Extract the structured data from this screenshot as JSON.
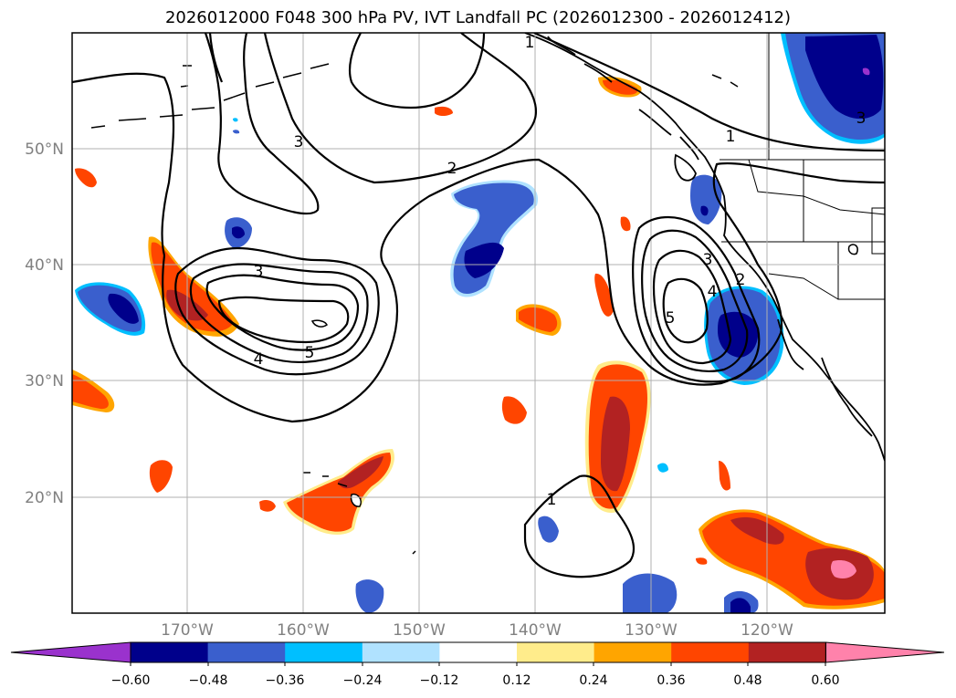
{
  "title": "2026012000 F048 300 hPa PV, IVT Landfall PC (2026012300 - 2026012412)",
  "latitude_labels": [
    "50°N",
    "40°N",
    "30°N",
    "20°N"
  ],
  "longitude_labels": [
    "170°W",
    "160°W",
    "150°W",
    "140°W",
    "130°W",
    "120°W"
  ],
  "colorbar": {
    "tick_labels": [
      "−0.60",
      "−0.48",
      "−0.36",
      "−0.24",
      "−0.12",
      "0.12",
      "0.24",
      "0.36",
      "0.48",
      "0.60"
    ],
    "colors": [
      "#9a32cd",
      "#00008b",
      "#3a5fcd",
      "#00bfff",
      "#b0e2ff",
      "#ffffff",
      "#ffec8b",
      "#ffa500",
      "#ff4500",
      "#b22222",
      "#ff82ab"
    ]
  },
  "contour_labels": [
    "1",
    "1",
    "1",
    "2",
    "2",
    "3",
    "3",
    "3",
    "3",
    "4",
    "4",
    "5",
    "5"
  ],
  "colors": {
    "grid": "#b0b0b0",
    "coast": "#000000",
    "contour": "#000000"
  }
}
